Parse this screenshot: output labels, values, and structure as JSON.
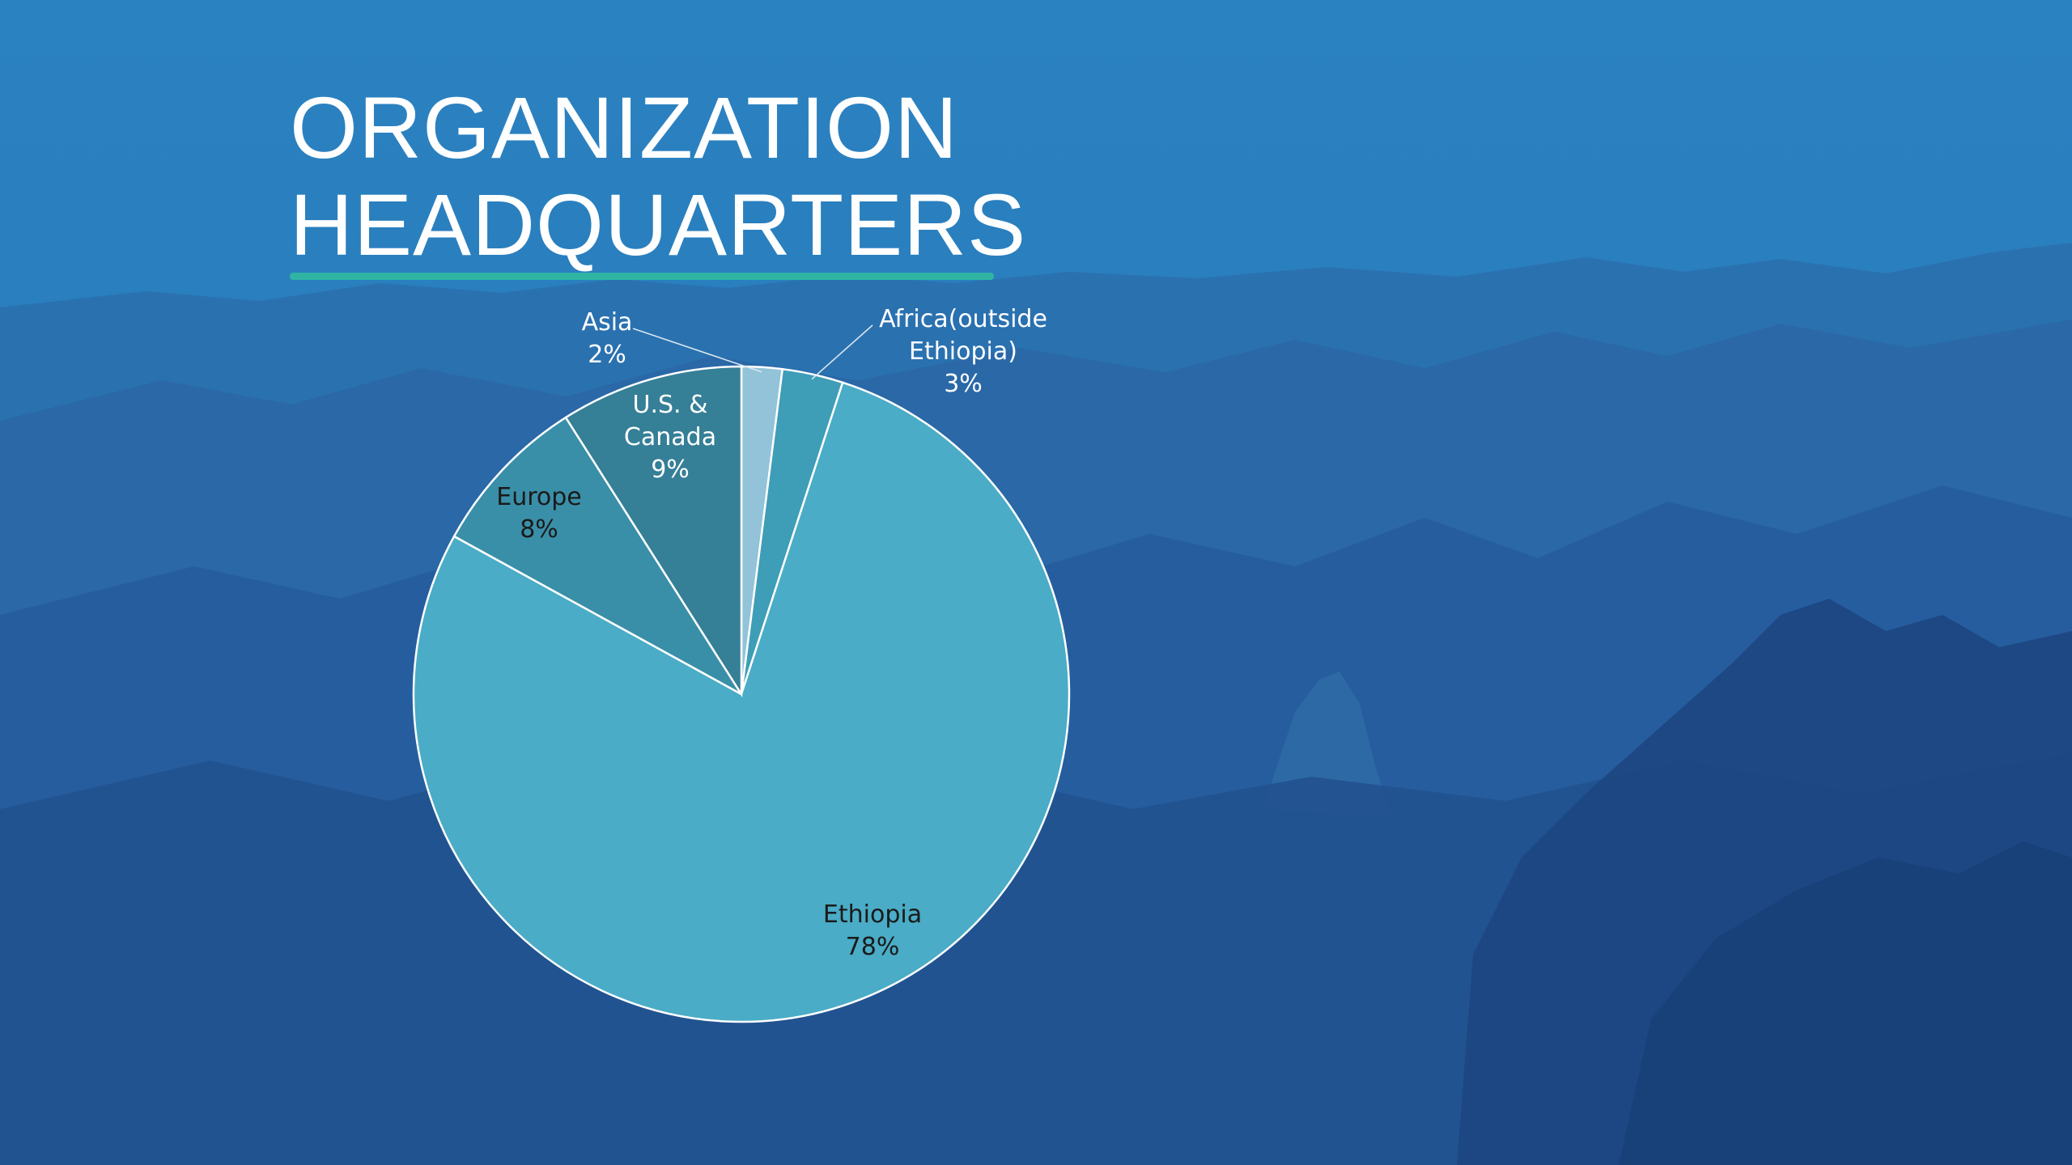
{
  "title_lines": [
    "ORGANIZATION",
    "HEADQUARTERS"
  ],
  "colors": {
    "title_text": "#ffffff",
    "title_rule": "#2fb4a4"
  },
  "chart_data": {
    "type": "pie",
    "title": "ORGANIZATION HEADQUARTERS",
    "start_angle_deg": 0,
    "direction": "clockwise",
    "slices": [
      {
        "label": "Asia",
        "value": 2,
        "color": "#92c3d8",
        "text_color": "#ffffff",
        "label_lines": [
          "Asia",
          "2%"
        ]
      },
      {
        "label": "Africa(outside Ethiopia)",
        "value": 3,
        "color": "#3e9db7",
        "text_color": "#ffffff",
        "label_lines": [
          "Africa(outside",
          "Ethiopia)",
          "3%"
        ]
      },
      {
        "label": "Ethiopia",
        "value": 78,
        "color": "#4aacc6",
        "text_color": "#1a1a1a",
        "label_lines": [
          "Ethiopia",
          "78%"
        ]
      },
      {
        "label": "Europe",
        "value": 8,
        "color": "#3a8fa8",
        "text_color": "#1a1a1a",
        "label_lines": [
          "Europe",
          "8%"
        ]
      },
      {
        "label": "U.S. & Canada",
        "value": 9,
        "color": "#357f97",
        "text_color": "#ffffff",
        "label_lines": [
          "U.S. &",
          "Canada",
          "9%"
        ]
      }
    ]
  }
}
